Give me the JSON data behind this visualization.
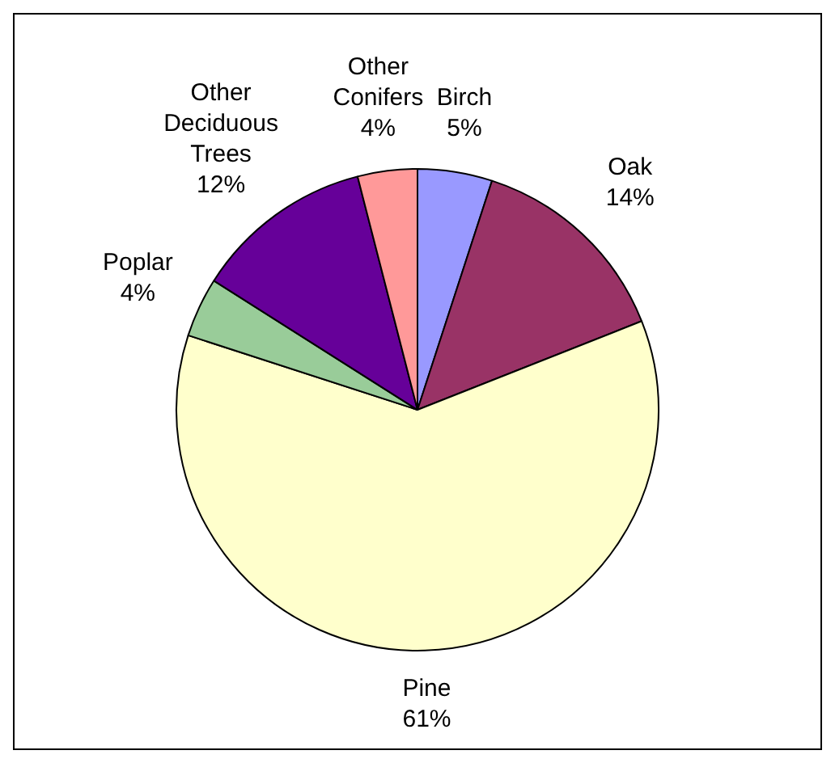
{
  "chart_data": {
    "type": "pie",
    "categories": [
      "Birch",
      "Oak",
      "Pine",
      "Poplar",
      "Other Deciduous Trees",
      "Other Conifers"
    ],
    "values": [
      5,
      14,
      61,
      4,
      12,
      4
    ],
    "colors": [
      "#9999ff",
      "#993366",
      "#ffffcc",
      "#99cc99",
      "#660099",
      "#ff9999"
    ],
    "value_labels": [
      "5%",
      "14%",
      "61%",
      "4%",
      "12%",
      "4%"
    ],
    "legend": false
  }
}
